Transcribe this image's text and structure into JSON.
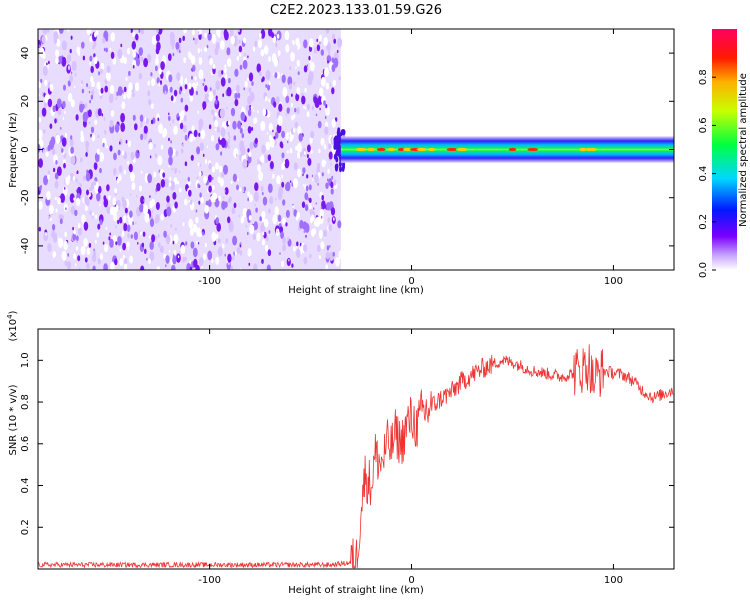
{
  "figure": {
    "title": "C2E2.2023.133.01.59.G26"
  },
  "colors": {
    "noise_light": "#e8dcff",
    "noise_dark": "#7a18f0",
    "snr_line": "#ee3333",
    "frame": "#000000"
  },
  "chart_data": [
    {
      "type": "heatmap",
      "xlabel": "Height of straight line (km)",
      "ylabel": "Frequency (Hz)",
      "xlim": [
        -185,
        130
      ],
      "ylim": [
        -50,
        50
      ],
      "x_ticks": [
        -100,
        0,
        100
      ],
      "y_ticks": [
        -40,
        -20,
        0,
        20,
        40
      ],
      "colorbar": {
        "label": "Normalized spectral amplitude",
        "range": [
          0.0,
          1.0
        ],
        "ticks": [
          "0.0",
          "0.2",
          "0.4",
          "0.6",
          "0.8"
        ],
        "tick_values": [
          0.0,
          0.2,
          0.4,
          0.6,
          0.8
        ],
        "colormap": "rainbow"
      },
      "noise_region_x": [
        -185,
        -35
      ],
      "signal_band": {
        "x_range": [
          -35,
          130
        ],
        "center_freq": 0,
        "half_width_hz": 2.5
      },
      "grid": false
    },
    {
      "type": "line",
      "xlabel": "Height of straight line (km)",
      "ylabel": "SNR (10 * v/v)",
      "y_scale_label": "(x10",
      "y_scale_exp": "4",
      "y_scale_close": ")",
      "xlim": [
        -185,
        130
      ],
      "ylim": [
        0.0,
        1.15
      ],
      "x_ticks": [
        -100,
        0,
        100
      ],
      "y_ticks": [
        "0.2",
        "0.4",
        "0.6",
        "0.8",
        "1.0"
      ],
      "y_tick_values": [
        0.2,
        0.4,
        0.6,
        0.8,
        1.0
      ],
      "series": [
        {
          "x": [
            -185,
            -150,
            -120,
            -100,
            -80,
            -60,
            -40,
            -30,
            -27,
            -25,
            -23,
            -20,
            -18,
            -15,
            -12,
            -10,
            -8,
            -5,
            -2,
            0,
            3,
            5,
            8,
            10,
            15,
            20,
            25,
            30,
            35,
            40,
            45,
            50,
            55,
            60,
            65,
            70,
            75,
            80,
            85,
            88,
            90,
            92,
            95,
            100,
            105,
            110,
            115,
            120,
            125,
            130
          ],
          "y": [
            0.02,
            0.02,
            0.02,
            0.02,
            0.02,
            0.02,
            0.02,
            0.03,
            0.05,
            0.3,
            0.45,
            0.4,
            0.55,
            0.5,
            0.6,
            0.58,
            0.65,
            0.6,
            0.7,
            0.72,
            0.68,
            0.75,
            0.76,
            0.78,
            0.82,
            0.85,
            0.9,
            0.93,
            0.96,
            0.98,
            1.0,
            0.99,
            0.97,
            0.95,
            0.94,
            0.93,
            0.92,
            0.94,
            0.96,
            0.98,
            0.9,
            0.93,
            0.95,
            0.94,
            0.93,
            0.9,
            0.85,
            0.82,
            0.84,
            0.86
          ]
        }
      ],
      "grid": false
    }
  ]
}
